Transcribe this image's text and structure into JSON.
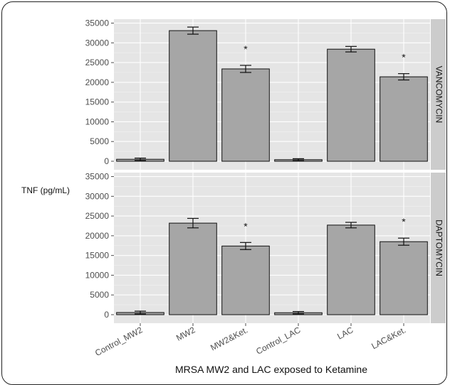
{
  "chart_data": {
    "type": "bar",
    "title": "",
    "xlabel": "MRSA MW2 and LAC exposed to Ketamine",
    "ylabel": "TNF (pg/mL)",
    "ylim": [
      0,
      36000
    ],
    "yticks": [
      0,
      5000,
      10000,
      15000,
      20000,
      25000,
      30000,
      35000
    ],
    "grid": true,
    "categories": [
      "Control_MW2",
      "MW2",
      "MW2&Ket.",
      "Control_LAC",
      "LAC",
      "LAC&Ket."
    ],
    "bar_color": "#a6a6a6",
    "panels": [
      {
        "name": "VANCOMYCIN",
        "values": [
          500,
          33100,
          23400,
          400,
          28400,
          21400
        ],
        "error": [
          300,
          900,
          900,
          250,
          700,
          800
        ],
        "significance": [
          "",
          "",
          "*",
          "",
          "",
          "*"
        ]
      },
      {
        "name": "DAPTOMYCIN",
        "values": [
          550,
          23200,
          17400,
          500,
          22700,
          18500
        ],
        "error": [
          350,
          1200,
          900,
          300,
          700,
          900
        ],
        "significance": [
          "",
          "",
          "*",
          "",
          "",
          "*"
        ]
      }
    ]
  }
}
